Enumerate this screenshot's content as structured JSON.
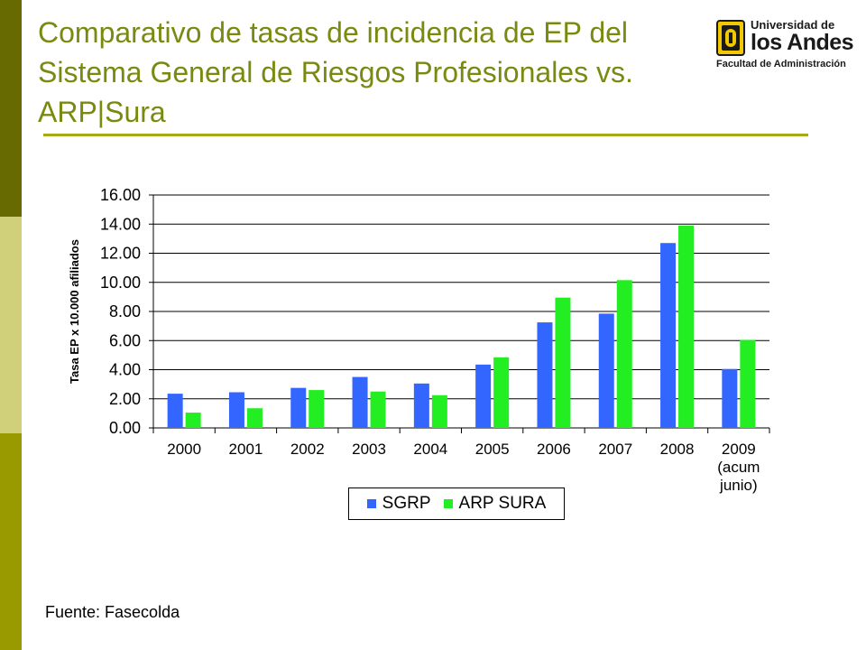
{
  "slide": {
    "title": "Comparativo de tasas de incidencia de EP del Sistema General de Riesgos Profesionales vs. ARP|Sura",
    "source": "Fuente: Fasecolda"
  },
  "logo": {
    "line1": "Universidad de",
    "line2": "los Andes",
    "line3": "Facultad de Administración"
  },
  "colors": {
    "strip_dark": "#666a00",
    "strip_light": "#d0d07a",
    "strip_mid": "#999a00",
    "title": "#7a8a10",
    "sgrp": "#3366ff",
    "arp_sura": "#22ee22"
  },
  "chart_data": {
    "type": "bar",
    "title": "",
    "xlabel": "",
    "ylabel": "Tasa EP x 10.000 afiliados",
    "ylim": [
      0,
      16
    ],
    "yticks": [
      "0.00",
      "2.00",
      "4.00",
      "6.00",
      "8.00",
      "10.00",
      "12.00",
      "14.00",
      "16.00"
    ],
    "grid": true,
    "legend_position": "bottom",
    "categories": [
      "2000",
      "2001",
      "2002",
      "2003",
      "2004",
      "2005",
      "2006",
      "2007",
      "2008",
      "2009 (acum junio)"
    ],
    "series": [
      {
        "name": "SGRP",
        "color": "#3366ff",
        "values": [
          2.35,
          2.45,
          2.75,
          3.5,
          3.05,
          4.35,
          7.25,
          7.85,
          12.7,
          4.05
        ]
      },
      {
        "name": "ARP SURA",
        "color": "#22ee22",
        "values": [
          1.05,
          1.35,
          2.6,
          2.5,
          2.25,
          4.85,
          8.95,
          10.15,
          13.9,
          6.05
        ]
      }
    ]
  }
}
